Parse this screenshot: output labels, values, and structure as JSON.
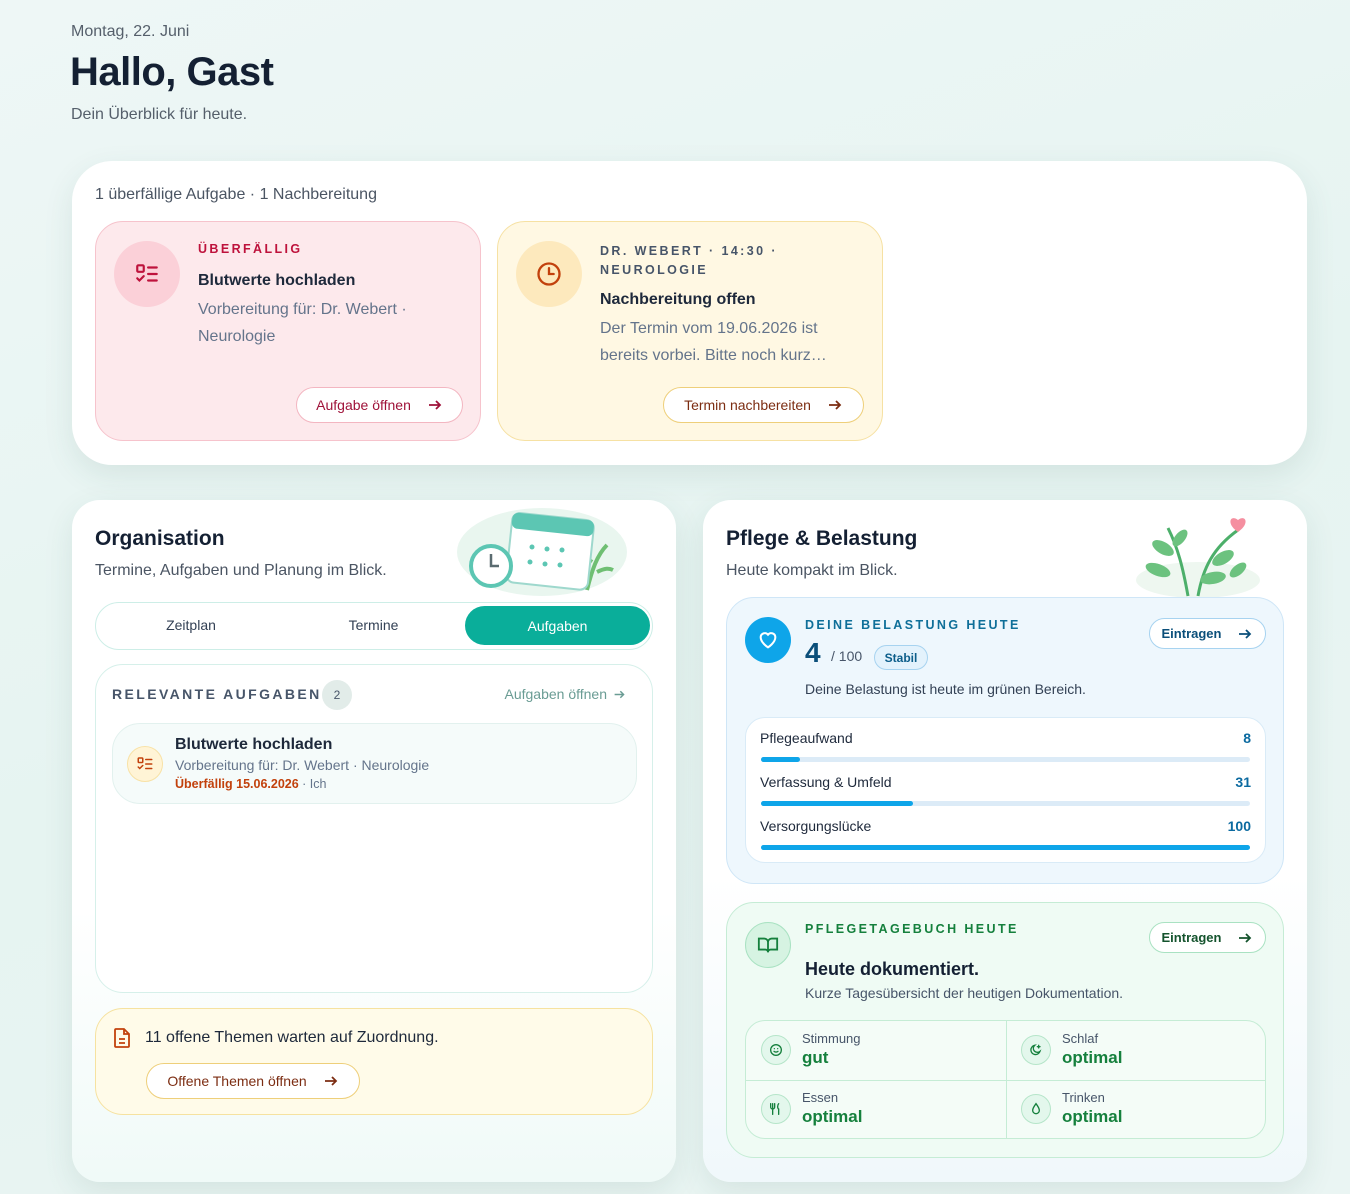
{
  "header": {
    "date": "Montag, 22. Juni",
    "title": "Hallo, Gast",
    "subtitle": "Dein Überblick für heute."
  },
  "alerts": {
    "summary": "1 überfällige Aufgabe · 1 Nachbereitung",
    "cards": [
      {
        "eyebrow": "ÜBERFÄLLIG",
        "title": "Blutwerte hochladen",
        "text": "Vorbereitung für: Dr. Webert · Neurologie",
        "button": "Aufgabe öffnen"
      },
      {
        "eyebrow": "DR. WEBERT · 14:30 · NEUROLOGIE",
        "title": "Nachbereitung offen",
        "text": "Der Termin vom 19.06.2026 ist bereits vorbei. Bitte noch kurz…",
        "button": "Termin nachbereiten"
      }
    ]
  },
  "organisation": {
    "title": "Organisation",
    "subtitle": "Termine, Aufgaben und Planung im Blick.",
    "tabs": [
      "Zeitplan",
      "Termine",
      "Aufgaben"
    ],
    "tasks": {
      "heading": "RELEVANTE AUFGABEN",
      "count": 2,
      "link": "Aufgaben öffnen",
      "items": [
        {
          "title": "Blutwerte hochladen",
          "subtitle": "Vorbereitung für: Dr. Webert · Neurologie",
          "due": "Überfällig 15.06.2026",
          "owner": "· Ich"
        }
      ]
    },
    "notice": {
      "text": "11 offene Themen warten auf Zuordnung.",
      "button": "Offene Themen öffnen"
    }
  },
  "care": {
    "title": "Pflege & Belastung",
    "subtitle": "Heute kompakt im Blick.",
    "load": {
      "eyebrow": "DEINE BELASTUNG HEUTE",
      "score": 4,
      "score_max": {
        "value": 100,
        "label": "/ 100"
      },
      "badge": "Stabil",
      "button": "Eintragen",
      "text": "Deine Belastung ist heute im grünen Bereich.",
      "factors": [
        {
          "name": "Pflegeaufwand",
          "value": 8
        },
        {
          "name": "Verfassung & Umfeld",
          "value": 31
        },
        {
          "name": "Versorgungslücke",
          "value": 100
        }
      ]
    },
    "diary": {
      "eyebrow": "PFLEGETAGEBUCH HEUTE",
      "button": "Eintragen",
      "title": "Heute dokumentiert.",
      "text": "Kurze Tagesübersicht der heutigen Dokumentation.",
      "items": [
        {
          "label": "Stimmung",
          "value": "gut"
        },
        {
          "label": "Schlaf",
          "value": "optimal"
        },
        {
          "label": "Essen",
          "value": "optimal"
        },
        {
          "label": "Trinken",
          "value": "optimal"
        }
      ]
    }
  }
}
